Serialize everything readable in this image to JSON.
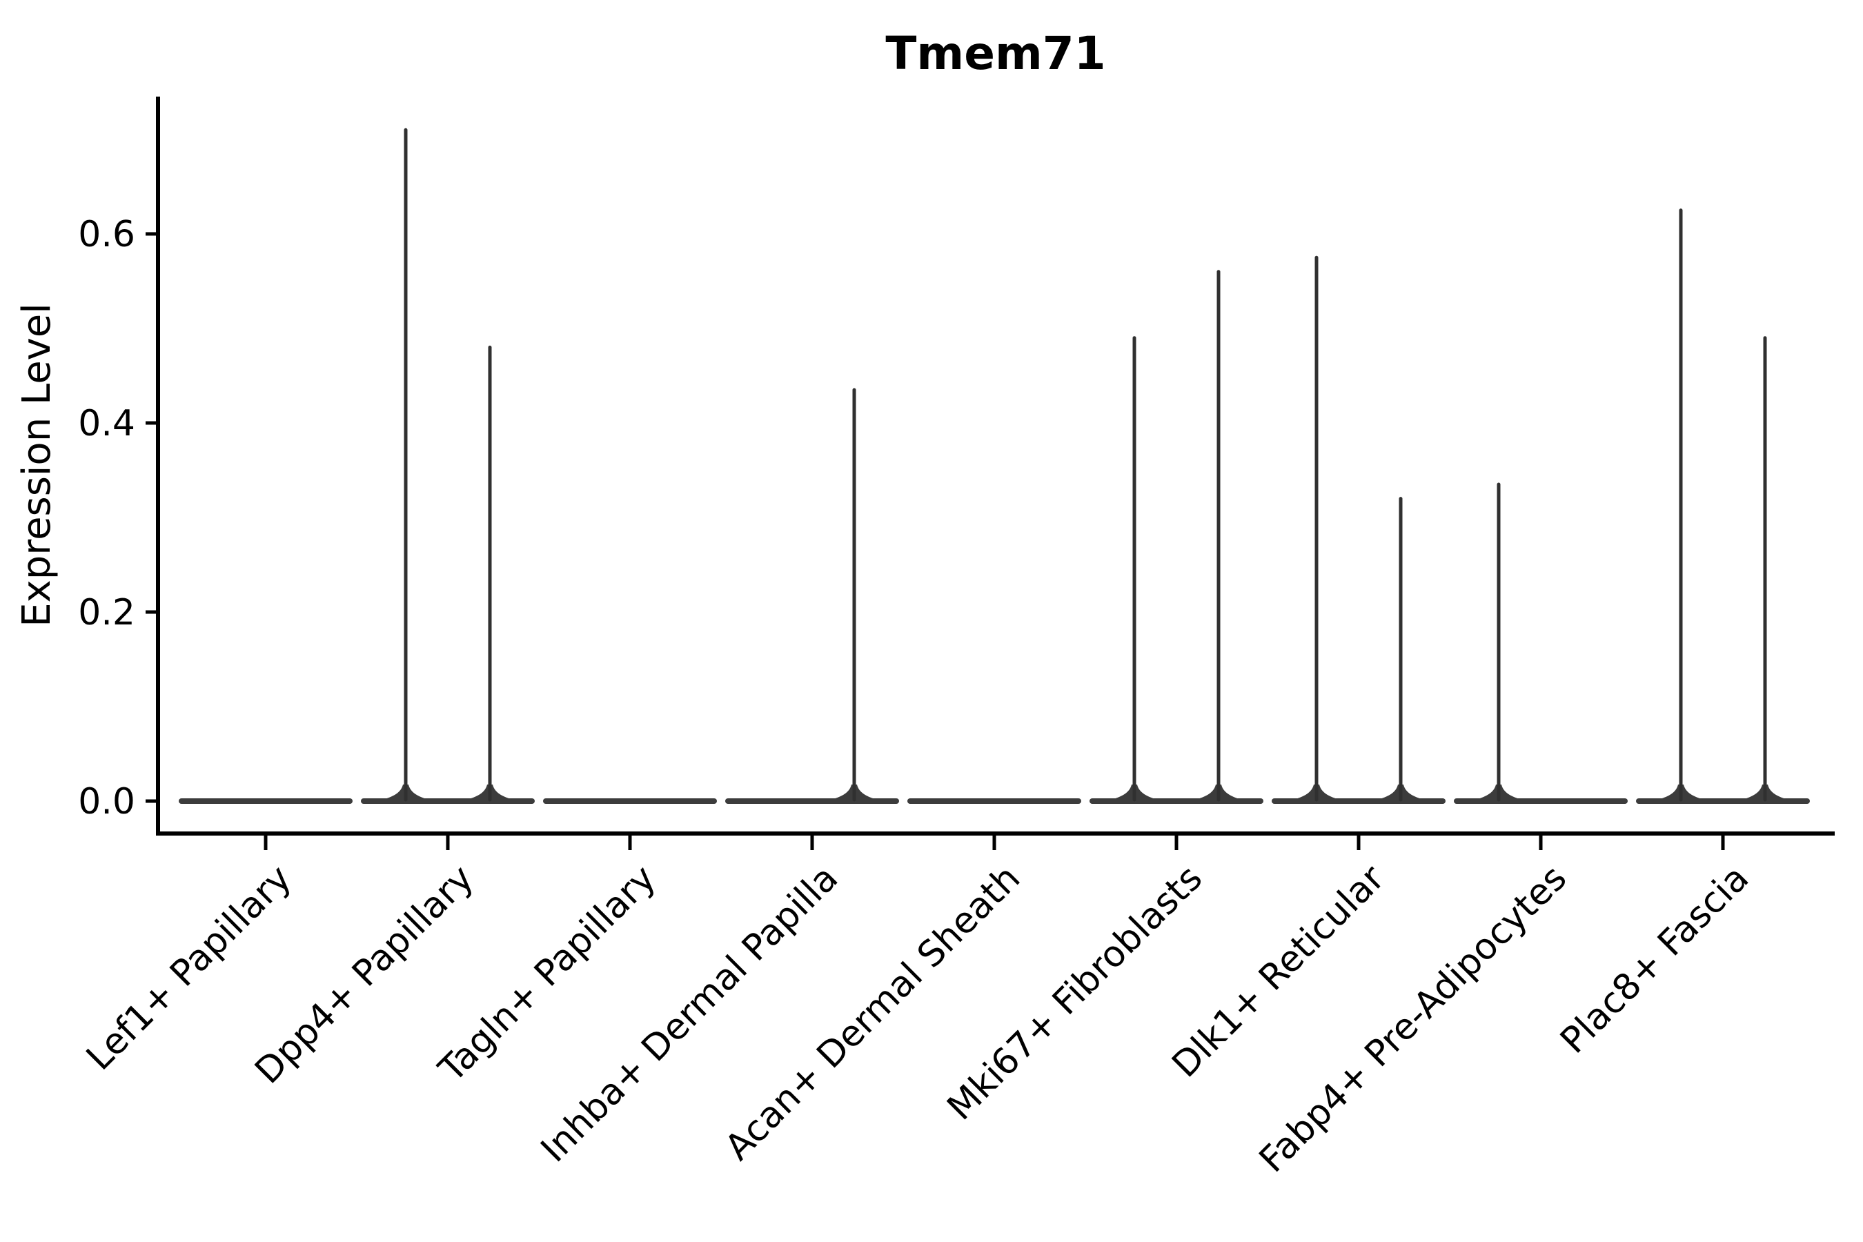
{
  "page": {
    "background": "#ffffff"
  },
  "chart_data": {
    "type": "violin",
    "title": "Tmem71",
    "ylabel": "Expression Level",
    "xlabel": "",
    "legend": "none",
    "grid": false,
    "ylim": [
      -0.035,
      0.745
    ],
    "yticks": [
      {
        "value": 0.0,
        "label": "0.0"
      },
      {
        "value": 0.2,
        "label": "0.2"
      },
      {
        "value": 0.4,
        "label": "0.4"
      },
      {
        "value": 0.6,
        "label": "0.6"
      }
    ],
    "categories": [
      "Lef1+ Papillary",
      "Dpp4+ Papillary",
      "Tagln+ Papillary",
      "Inhba+ Dermal Papilla",
      "Acan+ Dermal Sheath",
      "Mki67+ Fibroblasts",
      "Dlk1+ Reticular",
      "Fabp4+ Pre-Adipocytes",
      "Plac8+ Fascia"
    ],
    "violins_per_category": 2,
    "series": [
      {
        "category": "Lef1+ Papillary",
        "violin_max": [
          0,
          0
        ]
      },
      {
        "category": "Dpp4+ Papillary",
        "violin_max": [
          0.71,
          0.48
        ]
      },
      {
        "category": "Tagln+ Papillary",
        "violin_max": [
          0,
          0
        ]
      },
      {
        "category": "Inhba+ Dermal Papilla",
        "violin_max": [
          0,
          0.435
        ]
      },
      {
        "category": "Acan+ Dermal Sheath",
        "violin_max": [
          0,
          0
        ]
      },
      {
        "category": "Mki67+ Fibroblasts",
        "violin_max": [
          0.49,
          0.56
        ]
      },
      {
        "category": "Dlk1+ Reticular",
        "violin_max": [
          0.575,
          0.32
        ]
      },
      {
        "category": "Fabp4+ Pre-Adipocytes",
        "violin_max": [
          0.335,
          0
        ]
      },
      {
        "category": "Plac8+ Fascia",
        "violin_max": [
          0.625,
          0.49
        ]
      }
    ],
    "colors": {
      "violin_base": "#3c3c3c",
      "violin_spike": "#303030",
      "axis": "#000000",
      "text": "#000000",
      "background": "#ffffff"
    }
  }
}
